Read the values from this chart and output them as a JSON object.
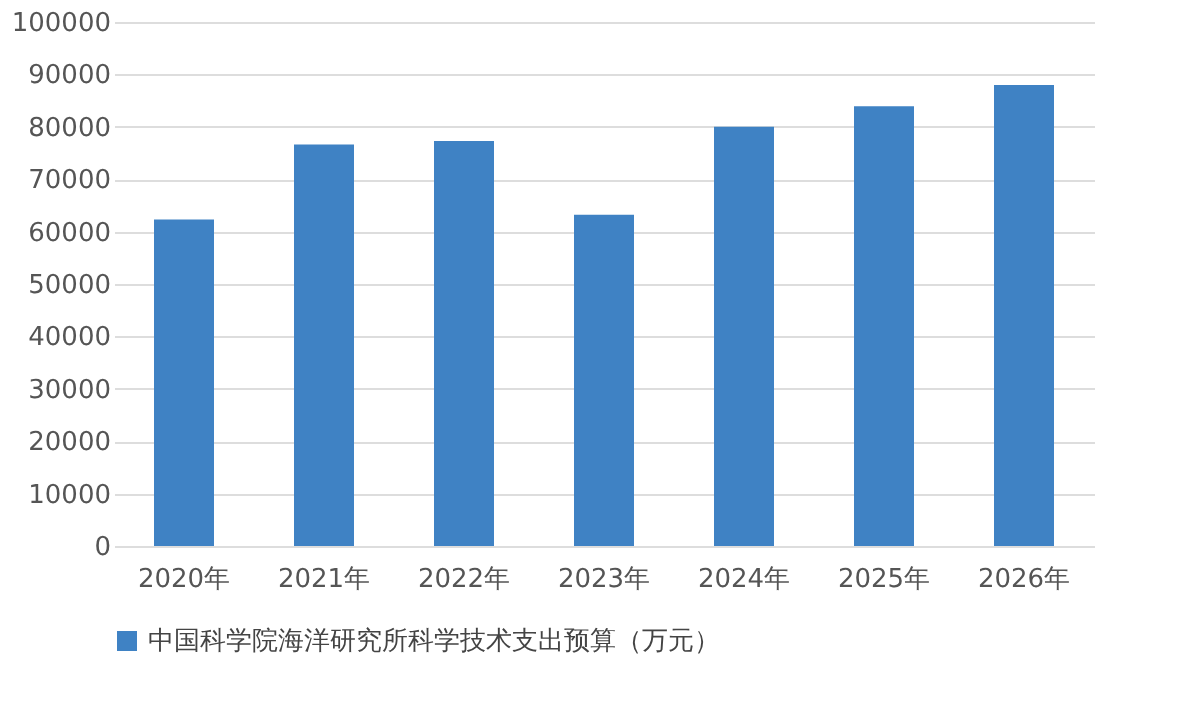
{
  "chart_data": {
    "type": "bar",
    "categories": [
      "2020年",
      "2021年",
      "2022年",
      "2023年",
      "2024年",
      "2025年",
      "2026年"
    ],
    "series": [
      {
        "name": "中国科学院海洋研究所科学技术支出预算（万元）",
        "color": "#3f82c4",
        "values": [
          62300,
          76600,
          77300,
          63200,
          80000,
          83900,
          88000
        ]
      }
    ],
    "ylim": [
      0,
      100000
    ],
    "yticks": [
      0,
      10000,
      20000,
      30000,
      40000,
      50000,
      60000,
      70000,
      80000,
      90000,
      100000
    ],
    "grid": "y",
    "legend": "bottom"
  }
}
